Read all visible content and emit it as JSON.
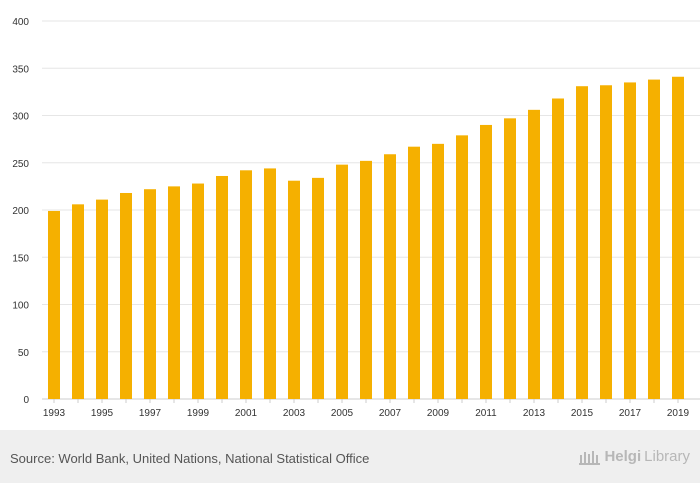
{
  "chart_data": {
    "type": "bar",
    "title": "",
    "xlabel": "",
    "ylabel": "",
    "ylim": [
      0,
      400
    ],
    "yticks": [
      0,
      50,
      100,
      150,
      200,
      250,
      300,
      350,
      400
    ],
    "categories": [
      "1993",
      "1994",
      "1995",
      "1996",
      "1997",
      "1998",
      "1999",
      "2000",
      "2001",
      "2002",
      "2003",
      "2004",
      "2005",
      "2006",
      "2007",
      "2008",
      "2009",
      "2010",
      "2011",
      "2012",
      "2013",
      "2014",
      "2015",
      "2016",
      "2017",
      "2018",
      "2019"
    ],
    "tick_labels": [
      "1993",
      "",
      "1995",
      "",
      "1997",
      "",
      "1999",
      "",
      "2001",
      "",
      "2003",
      "",
      "2005",
      "",
      "2007",
      "",
      "2009",
      "",
      "2011",
      "",
      "2013",
      "",
      "2015",
      "",
      "2017",
      "",
      "2019"
    ],
    "values": [
      199,
      206,
      211,
      218,
      222,
      225,
      228,
      236,
      242,
      244,
      231,
      234,
      248,
      252,
      259,
      267,
      270,
      279,
      290,
      297,
      306,
      318,
      331,
      332,
      335,
      338,
      341
    ],
    "bar_color": "#f5b000",
    "grid_color": "#e6e6e6"
  },
  "footer": {
    "source": "Source: World Bank, United Nations, National Statistical Office",
    "brand_prefix": "Helgi",
    "brand_suffix": "Library"
  }
}
